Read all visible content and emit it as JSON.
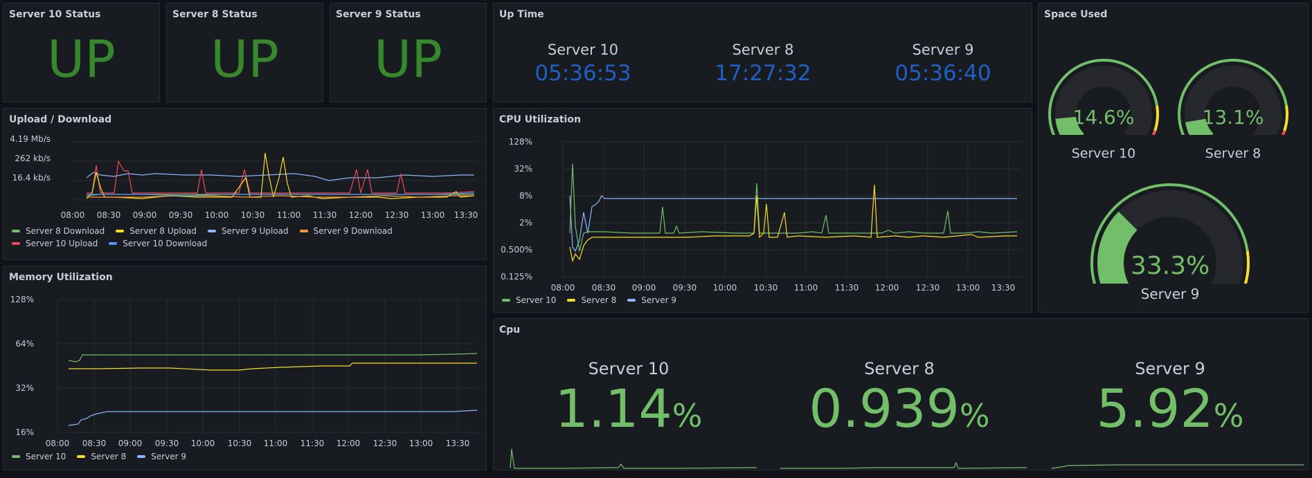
{
  "status_panels": [
    {
      "title": "Server 10 Status",
      "value": "UP"
    },
    {
      "title": "Server 8 Status",
      "value": "UP"
    },
    {
      "title": "Server 9 Status",
      "value": "UP"
    }
  ],
  "uptime": {
    "title": "Up Time",
    "servers": [
      {
        "name": "Server 10",
        "value": "05:36:53"
      },
      {
        "name": "Server 8",
        "value": "17:27:32"
      },
      {
        "name": "Server 9",
        "value": "05:36:40"
      }
    ]
  },
  "space_used": {
    "title": "Space Used",
    "gauges": [
      {
        "name": "Server 10",
        "percent": 14.6,
        "label": "14.6%"
      },
      {
        "name": "Server 8",
        "percent": 13.1,
        "label": "13.1%"
      },
      {
        "name": "Server 9",
        "percent": 33.3,
        "label": "33.3%"
      }
    ]
  },
  "cpu_stat": {
    "title": "Cpu",
    "unit": "%",
    "servers": [
      {
        "name": "Server 10",
        "value": "1.14"
      },
      {
        "name": "Server 8",
        "value": "0.939"
      },
      {
        "name": "Server 9",
        "value": "5.92"
      }
    ]
  },
  "colors": {
    "green": "#73bf69",
    "yellow": "#fade2a",
    "blue": "#8ab8ff",
    "orange": "#ff9830",
    "red": "#f2495c",
    "up": "#37872d",
    "uptime": "#1f60c4"
  },
  "chart_data": [
    {
      "type": "line",
      "title": "Upload / Download",
      "x": [
        "08:00",
        "08:30",
        "09:00",
        "09:30",
        "10:00",
        "10:30",
        "11:00",
        "11:30",
        "12:00",
        "12:30",
        "13:00",
        "13:30"
      ],
      "yticks": [
        "4.19 Mb/s",
        "262 kb/s",
        "16.4 kb/s"
      ],
      "series": [
        {
          "name": "Server 8 Download",
          "color": "#73bf69"
        },
        {
          "name": "Server 8 Upload",
          "color": "#fade2a"
        },
        {
          "name": "Server 9 Upload",
          "color": "#8ab8ff"
        },
        {
          "name": "Server 9 Download",
          "color": "#ff9830"
        },
        {
          "name": "Server 10 Upload",
          "color": "#f2495c"
        },
        {
          "name": "Server 10 Download",
          "color": "#5794f2"
        }
      ]
    },
    {
      "type": "line",
      "title": "CPU Utilization",
      "x": [
        "08:00",
        "08:30",
        "09:00",
        "09:30",
        "10:00",
        "10:30",
        "11:00",
        "11:30",
        "12:00",
        "12:30",
        "13:00",
        "13:30"
      ],
      "yticks": [
        "128%",
        "32%",
        "8%",
        "2%",
        "0.500%",
        "0.125%"
      ],
      "series": [
        {
          "name": "Server 10",
          "color": "#73bf69"
        },
        {
          "name": "Server 8",
          "color": "#fade2a"
        },
        {
          "name": "Server 9",
          "color": "#8ab8ff"
        }
      ]
    },
    {
      "type": "line",
      "title": "Memory Utilization",
      "x": [
        "08:00",
        "08:30",
        "09:00",
        "09:30",
        "10:00",
        "10:30",
        "11:00",
        "11:30",
        "12:00",
        "12:30",
        "13:00",
        "13:30"
      ],
      "yticks": [
        "128%",
        "64%",
        "32%",
        "16%"
      ],
      "series": [
        {
          "name": "Server 10",
          "color": "#73bf69"
        },
        {
          "name": "Server 8",
          "color": "#fade2a"
        },
        {
          "name": "Server 9",
          "color": "#8ab8ff"
        }
      ]
    }
  ]
}
